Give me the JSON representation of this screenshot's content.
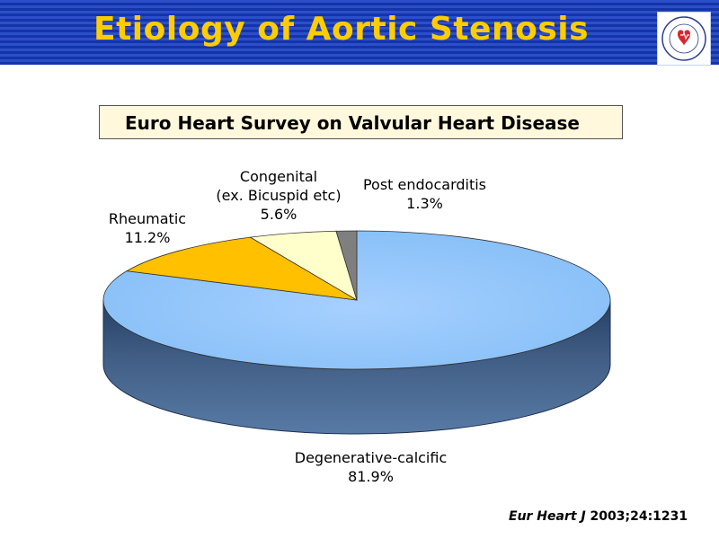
{
  "header": {
    "title": "Etiology of Aortic Stenosis",
    "logo_icon": "society-logo-icon"
  },
  "subtitle": "Euro Heart Survey on Valvular Heart Disease",
  "chart_data": {
    "type": "pie",
    "style": "3d",
    "slices": [
      {
        "name": "Degenerative-calcific",
        "value": 81.9,
        "label": "81.9%",
        "color": "#99ccff"
      },
      {
        "name": "Rheumatic",
        "value": 11.2,
        "label": "11.2%",
        "color": "#ffc000"
      },
      {
        "name": "Congenital\n(ex. Bicuspid etc)",
        "value": 5.6,
        "label": "5.6%",
        "color": "#ffffcc"
      },
      {
        "name": "Post endocarditis",
        "value": 1.3,
        "label": "1.3%",
        "color": "#7f7f7f"
      }
    ]
  },
  "labels": {
    "degenerative_name": "Degenerative-calcific",
    "degenerative_pct": "81.9%",
    "rheumatic_name": "Rheumatic",
    "rheumatic_pct": "11.2%",
    "congenital_line1": "Congenital",
    "congenital_line2": "(ex. Bicuspid etc)",
    "congenital_pct": "5.6%",
    "post_name": "Post endocarditis",
    "post_pct": "1.3%"
  },
  "citation": {
    "journal_italic": "Eur Heart J",
    "ref": " 2003;24:1231"
  }
}
